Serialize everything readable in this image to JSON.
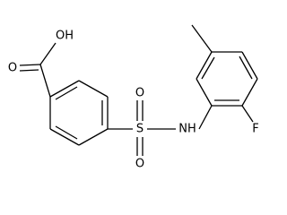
{
  "atoms": [
    "OH",
    "O",
    "S",
    "O",
    "O",
    "NH",
    "F"
  ]
}
